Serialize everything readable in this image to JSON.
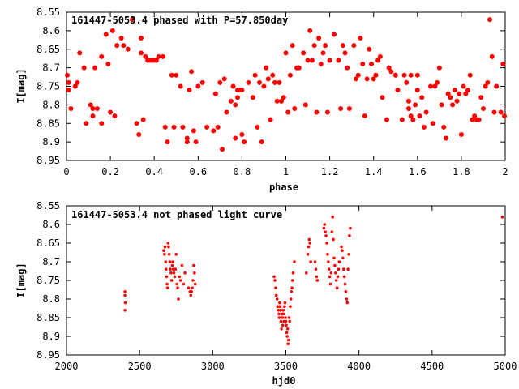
{
  "chart_data": [
    {
      "type": "scatter",
      "title": "161447-5053.4 phased with P=57.850day",
      "xlabel": "phase",
      "ylabel": "I[mag]",
      "xlim": [
        0,
        2
      ],
      "ylim": [
        8.95,
        8.55
      ],
      "y_inverted": true,
      "xticks": [
        0,
        0.2,
        0.4,
        0.6,
        0.8,
        1,
        1.2,
        1.4,
        1.6,
        1.8,
        2
      ],
      "xtick_labels": [
        "0",
        "0.2",
        "0.4",
        "0.6",
        "0.8",
        "1",
        "1.2",
        "1.4",
        "1.6",
        "1.8",
        "2"
      ],
      "yticks": [
        8.55,
        8.6,
        8.65,
        8.7,
        8.75,
        8.8,
        8.85,
        8.9,
        8.95
      ],
      "ytick_labels": [
        "8.55",
        "8.6",
        "8.65",
        "8.7",
        "8.75",
        "8.8",
        "8.85",
        "8.9",
        "8.95"
      ],
      "grid": false,
      "marker_color": "#ff0000",
      "marker": "large-dot",
      "points": [
        [
          0.0,
          8.72
        ],
        [
          0.01,
          8.74
        ],
        [
          0.01,
          8.76
        ],
        [
          0.02,
          8.81
        ],
        [
          0.04,
          8.75
        ],
        [
          0.05,
          8.74
        ],
        [
          0.06,
          8.66
        ],
        [
          0.08,
          8.7
        ],
        [
          0.09,
          8.85
        ],
        [
          0.11,
          8.8
        ],
        [
          0.12,
          8.81
        ],
        [
          0.12,
          8.83
        ],
        [
          0.13,
          8.7
        ],
        [
          0.14,
          8.81
        ],
        [
          0.16,
          8.85
        ],
        [
          0.16,
          8.67
        ],
        [
          0.18,
          8.61
        ],
        [
          0.19,
          8.69
        ],
        [
          0.2,
          8.82
        ],
        [
          0.21,
          8.6
        ],
        [
          0.22,
          8.83
        ],
        [
          0.23,
          8.64
        ],
        [
          0.25,
          8.62
        ],
        [
          0.26,
          8.64
        ],
        [
          0.28,
          8.65
        ],
        [
          0.3,
          8.57
        ],
        [
          0.32,
          8.85
        ],
        [
          0.33,
          8.88
        ],
        [
          0.34,
          8.62
        ],
        [
          0.34,
          8.66
        ],
        [
          0.35,
          8.84
        ],
        [
          0.36,
          8.67
        ],
        [
          0.37,
          8.68
        ],
        [
          0.38,
          8.68
        ],
        [
          0.39,
          8.68
        ],
        [
          0.4,
          8.68
        ],
        [
          0.41,
          8.68
        ],
        [
          0.42,
          8.67
        ],
        [
          0.44,
          8.67
        ],
        [
          0.45,
          8.86
        ],
        [
          0.46,
          8.9
        ],
        [
          0.48,
          8.72
        ],
        [
          0.49,
          8.86
        ],
        [
          0.5,
          8.72
        ],
        [
          0.52,
          8.75
        ],
        [
          0.53,
          8.86
        ],
        [
          0.55,
          8.89
        ],
        [
          0.55,
          8.9
        ],
        [
          0.56,
          8.76
        ],
        [
          0.57,
          8.71
        ],
        [
          0.58,
          8.87
        ],
        [
          0.59,
          8.9
        ],
        [
          0.6,
          8.75
        ],
        [
          0.62,
          8.74
        ],
        [
          0.64,
          8.86
        ],
        [
          0.67,
          8.87
        ],
        [
          0.68,
          8.77
        ],
        [
          0.69,
          8.86
        ],
        [
          0.7,
          8.74
        ],
        [
          0.71,
          8.92
        ],
        [
          0.72,
          8.73
        ],
        [
          0.73,
          8.82
        ],
        [
          0.75,
          8.79
        ],
        [
          0.76,
          8.75
        ],
        [
          0.77,
          8.89
        ],
        [
          0.77,
          8.8
        ],
        [
          0.78,
          8.76
        ],
        [
          0.78,
          8.78
        ],
        [
          0.79,
          8.76
        ],
        [
          0.8,
          8.88
        ],
        [
          0.8,
          8.76
        ],
        [
          0.81,
          8.9
        ],
        [
          0.83,
          8.74
        ],
        [
          0.85,
          8.78
        ],
        [
          0.86,
          8.72
        ],
        [
          0.87,
          8.86
        ],
        [
          0.88,
          8.74
        ],
        [
          0.89,
          8.9
        ],
        [
          0.9,
          8.75
        ],
        [
          0.91,
          8.7
        ],
        [
          0.92,
          8.73
        ],
        [
          0.93,
          8.84
        ],
        [
          0.94,
          8.72
        ],
        [
          0.95,
          8.74
        ],
        [
          0.96,
          8.79
        ],
        [
          0.97,
          8.74
        ],
        [
          0.98,
          8.79
        ],
        [
          0.99,
          8.78
        ],
        [
          1.0,
          8.66
        ],
        [
          1.01,
          8.82
        ],
        [
          1.02,
          8.72
        ],
        [
          1.03,
          8.64
        ],
        [
          1.04,
          8.81
        ],
        [
          1.05,
          8.7
        ],
        [
          1.06,
          8.7
        ],
        [
          1.08,
          8.66
        ],
        [
          1.09,
          8.8
        ],
        [
          1.1,
          8.68
        ],
        [
          1.11,
          8.6
        ],
        [
          1.12,
          8.68
        ],
        [
          1.13,
          8.64
        ],
        [
          1.14,
          8.82
        ],
        [
          1.15,
          8.62
        ],
        [
          1.16,
          8.69
        ],
        [
          1.17,
          8.66
        ],
        [
          1.18,
          8.64
        ],
        [
          1.19,
          8.82
        ],
        [
          1.2,
          8.68
        ],
        [
          1.22,
          8.61
        ],
        [
          1.24,
          8.68
        ],
        [
          1.25,
          8.81
        ],
        [
          1.26,
          8.64
        ],
        [
          1.27,
          8.66
        ],
        [
          1.28,
          8.7
        ],
        [
          1.29,
          8.81
        ],
        [
          1.31,
          8.64
        ],
        [
          1.32,
          8.73
        ],
        [
          1.33,
          8.72
        ],
        [
          1.34,
          8.62
        ],
        [
          1.35,
          8.69
        ],
        [
          1.36,
          8.83
        ],
        [
          1.37,
          8.73
        ],
        [
          1.38,
          8.65
        ],
        [
          1.39,
          8.69
        ],
        [
          1.4,
          8.73
        ],
        [
          1.41,
          8.72
        ],
        [
          1.42,
          8.68
        ],
        [
          1.43,
          8.67
        ],
        [
          1.44,
          8.78
        ],
        [
          1.46,
          8.84
        ],
        [
          1.47,
          8.7
        ],
        [
          1.48,
          8.71
        ],
        [
          1.5,
          8.72
        ],
        [
          1.51,
          8.76
        ],
        [
          1.53,
          8.84
        ],
        [
          1.54,
          8.72
        ],
        [
          1.55,
          8.74
        ],
        [
          1.56,
          8.79
        ],
        [
          1.56,
          8.81
        ],
        [
          1.57,
          8.72
        ],
        [
          1.57,
          8.83
        ],
        [
          1.58,
          8.84
        ],
        [
          1.59,
          8.8
        ],
        [
          1.6,
          8.76
        ],
        [
          1.6,
          8.72
        ],
        [
          1.61,
          8.83
        ],
        [
          1.62,
          8.78
        ],
        [
          1.63,
          8.86
        ],
        [
          1.64,
          8.82
        ],
        [
          1.66,
          8.75
        ],
        [
          1.67,
          8.85
        ],
        [
          1.68,
          8.75
        ],
        [
          1.69,
          8.74
        ],
        [
          1.7,
          8.7
        ],
        [
          1.71,
          8.8
        ],
        [
          1.72,
          8.86
        ],
        [
          1.73,
          8.89
        ],
        [
          1.74,
          8.77
        ],
        [
          1.75,
          8.78
        ],
        [
          1.76,
          8.8
        ],
        [
          1.77,
          8.76
        ],
        [
          1.78,
          8.79
        ],
        [
          1.79,
          8.77
        ],
        [
          1.8,
          8.88
        ],
        [
          1.81,
          8.75
        ],
        [
          1.82,
          8.77
        ],
        [
          1.83,
          8.76
        ],
        [
          1.84,
          8.72
        ],
        [
          1.85,
          8.84
        ],
        [
          1.86,
          8.83
        ],
        [
          1.87,
          8.84
        ],
        [
          1.88,
          8.84
        ],
        [
          1.89,
          8.78
        ],
        [
          1.9,
          8.81
        ],
        [
          1.91,
          8.75
        ],
        [
          1.92,
          8.74
        ],
        [
          1.93,
          8.57
        ],
        [
          1.94,
          8.67
        ],
        [
          1.95,
          8.82
        ],
        [
          1.96,
          8.75
        ],
        [
          1.98,
          8.82
        ],
        [
          1.99,
          8.69
        ],
        [
          2.0,
          8.83
        ]
      ]
    },
    {
      "type": "scatter",
      "title": "161447-5053.4 not phased light curve",
      "xlabel": "hjd0",
      "ylabel": "I[mag]",
      "xlim": [
        2000,
        5000
      ],
      "ylim": [
        8.95,
        8.55
      ],
      "y_inverted": true,
      "xticks": [
        2000,
        2500,
        3000,
        3500,
        4000,
        4500,
        5000
      ],
      "xtick_labels": [
        "2000",
        "2500",
        "3000",
        "3500",
        "4000",
        "4500",
        "5000"
      ],
      "yticks": [
        8.55,
        8.6,
        8.65,
        8.7,
        8.75,
        8.8,
        8.85,
        8.9,
        8.95
      ],
      "ytick_labels": [
        "8.55",
        "8.6",
        "8.65",
        "8.7",
        "8.75",
        "8.8",
        "8.85",
        "8.9",
        "8.95"
      ],
      "grid": false,
      "marker_color": "#ff0000",
      "marker": "small-dot",
      "points": [
        [
          2400,
          8.78
        ],
        [
          2400,
          8.79
        ],
        [
          2402,
          8.81
        ],
        [
          2400,
          8.83
        ],
        [
          2665,
          8.67
        ],
        [
          2670,
          8.68
        ],
        [
          2673,
          8.66
        ],
        [
          2678,
          8.7
        ],
        [
          2681,
          8.72
        ],
        [
          2685,
          8.74
        ],
        [
          2688,
          8.76
        ],
        [
          2691,
          8.77
        ],
        [
          2695,
          8.65
        ],
        [
          2698,
          8.66
        ],
        [
          2702,
          8.68
        ],
        [
          2706,
          8.7
        ],
        [
          2710,
          8.72
        ],
        [
          2715,
          8.73
        ],
        [
          2719,
          8.75
        ],
        [
          2723,
          8.71
        ],
        [
          2727,
          8.7
        ],
        [
          2731,
          8.72
        ],
        [
          2735,
          8.73
        ],
        [
          2740,
          8.74
        ],
        [
          2745,
          8.72
        ],
        [
          2750,
          8.68
        ],
        [
          2755,
          8.76
        ],
        [
          2760,
          8.77
        ],
        [
          2765,
          8.8
        ],
        [
          2773,
          8.74
        ],
        [
          2780,
          8.75
        ],
        [
          2790,
          8.71
        ],
        [
          2800,
          8.76
        ],
        [
          2810,
          8.73
        ],
        [
          2835,
          8.77
        ],
        [
          2845,
          8.78
        ],
        [
          2850,
          8.79
        ],
        [
          2855,
          8.78
        ],
        [
          2860,
          8.77
        ],
        [
          2865,
          8.75
        ],
        [
          2870,
          8.71
        ],
        [
          2875,
          8.73
        ],
        [
          2880,
          8.76
        ],
        [
          3420,
          8.74
        ],
        [
          3425,
          8.75
        ],
        [
          3430,
          8.77
        ],
        [
          3435,
          8.79
        ],
        [
          3440,
          8.8
        ],
        [
          3444,
          8.82
        ],
        [
          3448,
          8.83
        ],
        [
          3452,
          8.84
        ],
        [
          3455,
          8.85
        ],
        [
          3458,
          8.81
        ],
        [
          3461,
          8.82
        ],
        [
          3464,
          8.83
        ],
        [
          3467,
          8.86
        ],
        [
          3470,
          8.88
        ],
        [
          3473,
          8.84
        ],
        [
          3476,
          8.85
        ],
        [
          3479,
          8.87
        ],
        [
          3482,
          8.83
        ],
        [
          3485,
          8.84
        ],
        [
          3488,
          8.86
        ],
        [
          3491,
          8.82
        ],
        [
          3494,
          8.81
        ],
        [
          3497,
          8.85
        ],
        [
          3500,
          8.86
        ],
        [
          3503,
          8.87
        ],
        [
          3506,
          8.89
        ],
        [
          3509,
          8.9
        ],
        [
          3512,
          8.88
        ],
        [
          3515,
          8.92
        ],
        [
          3518,
          8.91
        ],
        [
          3522,
          8.85
        ],
        [
          3526,
          8.86
        ],
        [
          3530,
          8.82
        ],
        [
          3534,
          8.8
        ],
        [
          3538,
          8.78
        ],
        [
          3542,
          8.77
        ],
        [
          3546,
          8.75
        ],
        [
          3550,
          8.73
        ],
        [
          3558,
          8.7
        ],
        [
          3640,
          8.73
        ],
        [
          3650,
          8.68
        ],
        [
          3655,
          8.66
        ],
        [
          3660,
          8.64
        ],
        [
          3665,
          8.65
        ],
        [
          3670,
          8.7
        ],
        [
          3700,
          8.7
        ],
        [
          3705,
          8.72
        ],
        [
          3710,
          8.74
        ],
        [
          3715,
          8.75
        ],
        [
          3760,
          8.61
        ],
        [
          3765,
          8.6
        ],
        [
          3770,
          8.62
        ],
        [
          3775,
          8.63
        ],
        [
          3780,
          8.65
        ],
        [
          3785,
          8.68
        ],
        [
          3790,
          8.7
        ],
        [
          3795,
          8.72
        ],
        [
          3800,
          8.74
        ],
        [
          3805,
          8.76
        ],
        [
          3810,
          8.73
        ],
        [
          3815,
          8.62
        ],
        [
          3820,
          8.58
        ],
        [
          3825,
          8.64
        ],
        [
          3830,
          8.69
        ],
        [
          3835,
          8.71
        ],
        [
          3840,
          8.73
        ],
        [
          3845,
          8.75
        ],
        [
          3850,
          8.77
        ],
        [
          3855,
          8.74
        ],
        [
          3860,
          8.72
        ],
        [
          3865,
          8.7
        ],
        [
          3880,
          8.66
        ],
        [
          3885,
          8.67
        ],
        [
          3890,
          8.69
        ],
        [
          3895,
          8.72
        ],
        [
          3900,
          8.74
        ],
        [
          3905,
          8.76
        ],
        [
          3910,
          8.78
        ],
        [
          3915,
          8.8
        ],
        [
          3920,
          8.81
        ],
        [
          3925,
          8.72
        ],
        [
          3930,
          8.68
        ],
        [
          3935,
          8.63
        ],
        [
          3940,
          8.61
        ],
        [
          4980,
          8.58
        ]
      ]
    }
  ]
}
